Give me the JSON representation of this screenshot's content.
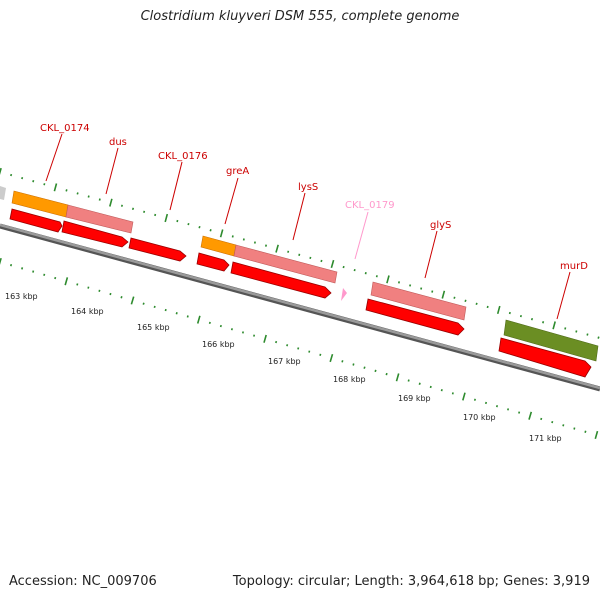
{
  "title": "Clostridium kluyveri DSM 555, complete genome",
  "footer": {
    "accession": "Accession: NC_009706",
    "summary": "Topology: circular; Length: 3,964,618 bp; Genes: 3,919"
  },
  "colors": {
    "backbone": "#808080",
    "tick_green": "#2e8b2e",
    "cds_red": "#ff0000",
    "cds_dark": "#cc0000",
    "gene_salmon": "#f08080",
    "gene_orange": "#ff9900",
    "gene_olive": "#6b8e23",
    "label_red": "#cc0000",
    "label_pink": "#ff99cc"
  },
  "genes": [
    {
      "name": "CKL_0174",
      "color": "label_red"
    },
    {
      "name": "dus",
      "color": "label_red"
    },
    {
      "name": "CKL_0176",
      "color": "label_red"
    },
    {
      "name": "greA",
      "color": "label_red"
    },
    {
      "name": "lysS",
      "color": "label_red"
    },
    {
      "name": "CKL_0179",
      "color": "label_pink"
    },
    {
      "name": "glyS",
      "color": "label_red"
    },
    {
      "name": "murD",
      "color": "label_red"
    }
  ],
  "kbp_labels": [
    "163 kbp",
    "164 kbp",
    "165 kbp",
    "166 kbp",
    "167 kbp",
    "168 kbp",
    "169 kbp",
    "170 kbp",
    "171 kbp"
  ]
}
